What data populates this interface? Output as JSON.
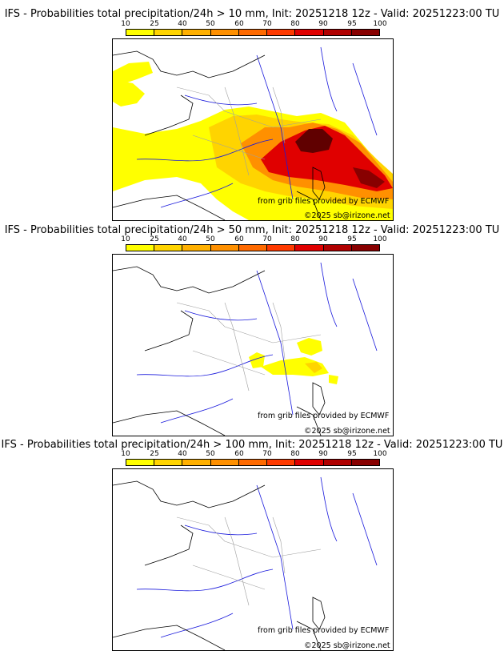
{
  "colorbar": {
    "ticks": [
      "10",
      "25",
      "40",
      "50",
      "60",
      "70",
      "80",
      "90",
      "95",
      "100"
    ],
    "colors": [
      "#ffff00",
      "#ffd400",
      "#ffb000",
      "#ff9000",
      "#ff6a00",
      "#ff3a00",
      "#e00000",
      "#b00000",
      "#880000",
      "#600000"
    ]
  },
  "credits": {
    "source": "from grib files provided by ECMWF",
    "copyright": "©2025 sb@irizone.net"
  },
  "panels": [
    {
      "title": "IFS - Probabilities total precipitation/24h > 10 mm, Init: 20251218 12z - Valid: 20251223:00 TU",
      "threshold_mm": 10
    },
    {
      "title": "IFS - Probabilities total precipitation/24h > 50 mm, Init: 20251218 12z - Valid: 20251223:00 TU",
      "threshold_mm": 50
    },
    {
      "title": "IFS - Probabilities total precipitation/24h > 100 mm, Init: 20251218 12z - Valid: 20251223:00 TU",
      "threshold_mm": 100
    }
  ]
}
